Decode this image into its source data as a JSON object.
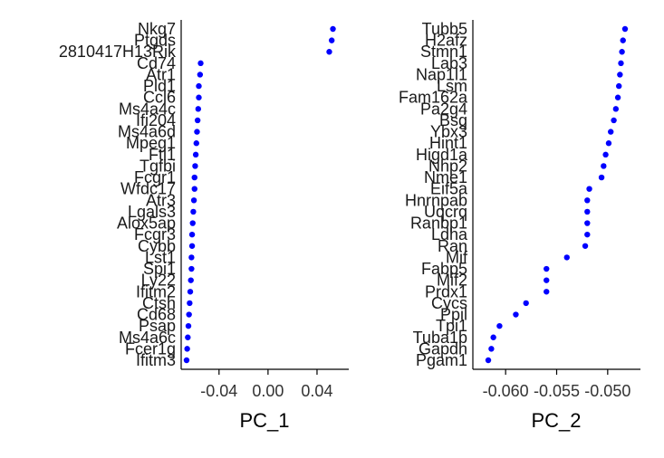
{
  "chart_data": [
    {
      "type": "scatter",
      "title": "",
      "xlabel": "PC_1",
      "ylabel": "",
      "xlim": [
        -0.065,
        0.06
      ],
      "xticks": [
        -0.04,
        0.0,
        0.04
      ],
      "xtick_labels": [
        "-0.04",
        "0.00",
        "0.04"
      ],
      "point_color": "#0000ff",
      "genes": [
        "Nkg7",
        "Ptgds",
        "2810417H13Rik",
        "Cd74",
        "Atr1",
        "Pld1",
        "Ccl6",
        "Ms4a4c",
        "Ifi204",
        "Ms4a6d",
        "Mpeg1",
        "Ftl1",
        "Tgfbi",
        "Fcgr1",
        "Wfdc17",
        "Atr3",
        "Lgals3",
        "Alox5ap",
        "Fcgr3",
        "Cybb",
        "Lst1",
        "Spi1",
        "Ly22",
        "Ifitm2",
        "Ctsh",
        "Cd68",
        "Psap",
        "Ms4a6c",
        "Fcer1g",
        "Ifitm3"
      ],
      "values": [
        0.053,
        0.052,
        0.05,
        -0.055,
        -0.0555,
        -0.0565,
        -0.0565,
        -0.057,
        -0.0575,
        -0.058,
        -0.0585,
        -0.059,
        -0.0595,
        -0.06,
        -0.06,
        -0.0605,
        -0.061,
        -0.0615,
        -0.062,
        -0.062,
        -0.0625,
        -0.0625,
        -0.063,
        -0.0635,
        -0.064,
        -0.0645,
        -0.065,
        -0.0655,
        -0.066,
        -0.0665
      ]
    },
    {
      "type": "scatter",
      "title": "",
      "xlabel": "PC_2",
      "ylabel": "",
      "xlim": [
        -0.0625,
        -0.0475
      ],
      "xticks": [
        -0.06,
        -0.055,
        -0.05
      ],
      "xtick_labels": [
        "-0.060",
        "-0.055",
        "-0.050"
      ],
      "point_color": "#0000ff",
      "genes": [
        "Tubb5",
        "H2afz",
        "Stmn1",
        "Lab3",
        "Nap1l1",
        "Lsm",
        "Fam162a",
        "Pa2g4",
        "Bsg",
        "Ybx3",
        "Hint1",
        "Higd1a",
        "Nhp2",
        "Nme1",
        "Eif5a",
        "Hnrnpab",
        "Uqcrq",
        "Ranbp1",
        "Ldha",
        "Ran",
        "Mif",
        "Fabp5",
        "Mif2",
        "Prdx1",
        "Cycs",
        "Ppil",
        "Tpi1",
        "Tuba1b",
        "Gapdh",
        "Pgam1"
      ],
      "values": [
        -0.0483,
        -0.0485,
        -0.0486,
        -0.0487,
        -0.0488,
        -0.0489,
        -0.049,
        -0.0492,
        -0.0494,
        -0.0497,
        -0.0499,
        -0.0502,
        -0.0504,
        -0.0506,
        -0.0518,
        -0.052,
        -0.052,
        -0.052,
        -0.052,
        -0.0522,
        -0.054,
        -0.056,
        -0.056,
        -0.056,
        -0.058,
        -0.059,
        -0.0606,
        -0.0612,
        -0.0614,
        -0.0617
      ]
    }
  ]
}
